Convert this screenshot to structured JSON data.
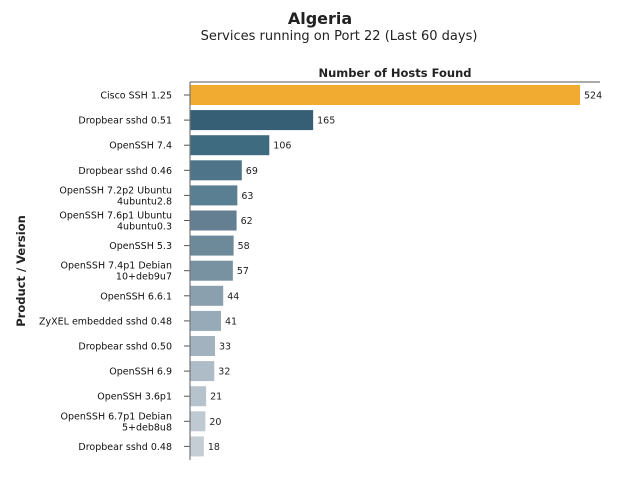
{
  "chart_data": {
    "type": "bar",
    "orientation": "horizontal",
    "title": "Algeria",
    "subtitle": "Services running on Port 22 (Last 60 days)",
    "xlabel": "Number of Hosts Found",
    "ylabel": "Product / Version",
    "xlim": [
      0,
      550
    ],
    "grid": false,
    "categories": [
      "Cisco SSH 1.25",
      "Dropbear sshd 0.51",
      "OpenSSH 7.4",
      "Dropbear sshd 0.46",
      "OpenSSH 7.2p2 Ubuntu\n4ubuntu2.8",
      "OpenSSH 7.6p1 Ubuntu\n4ubuntu0.3",
      "OpenSSH 5.3",
      "OpenSSH 7.4p1 Debian\n10+deb9u7",
      "OpenSSH 6.6.1",
      "ZyXEL embedded sshd 0.48",
      "Dropbear sshd 0.50",
      "OpenSSH 6.9",
      "OpenSSH 3.6p1",
      "OpenSSH 6.7p1 Debian\n5+deb8u8",
      "Dropbear sshd 0.48"
    ],
    "values": [
      524,
      165,
      106,
      69,
      63,
      62,
      58,
      57,
      44,
      41,
      33,
      32,
      21,
      20,
      18
    ],
    "colors": [
      "#f0ab30",
      "#365f76",
      "#3f6b81",
      "#4d7489",
      "#5a7e92",
      "#637f91",
      "#6d8a9b",
      "#7892a2",
      "#8aa0ae",
      "#96aab7",
      "#a2b3bf",
      "#adbcc6",
      "#b7c3cc",
      "#bfc9d1",
      "#c5ced5"
    ]
  }
}
